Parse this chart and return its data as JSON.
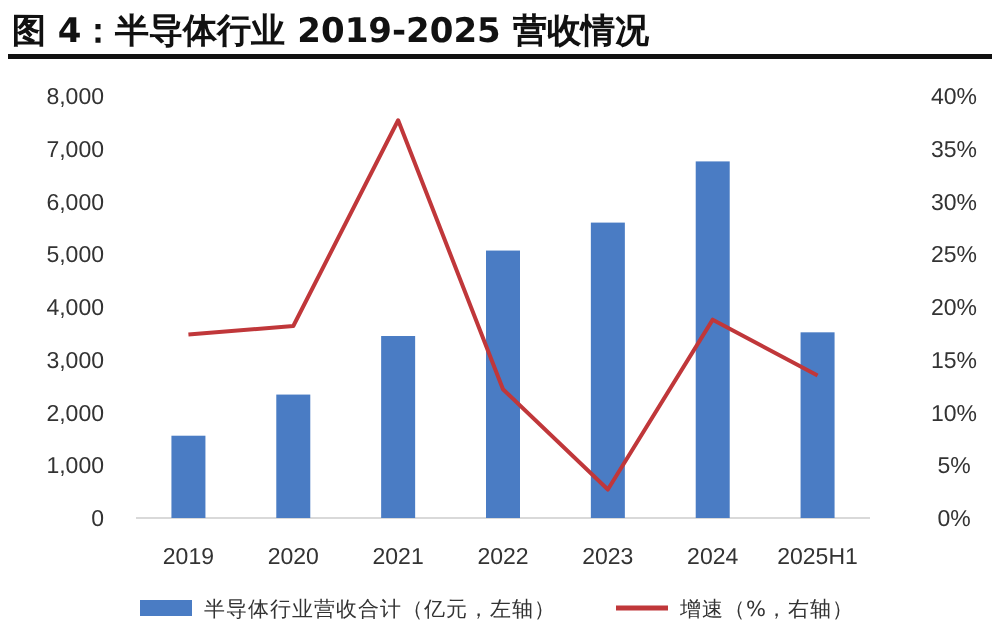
{
  "chart_data": {
    "type": "bar",
    "title": "图 4：半导体行业 2019-2025 营收情况",
    "categories": [
      "2019",
      "2020",
      "2021",
      "2022",
      "2023",
      "2024",
      "2025H1"
    ],
    "series": [
      {
        "name": "半导体行业营收合计（亿元，左轴）",
        "color": "#4a7cc4",
        "axis": "y",
        "values": [
          1560,
          2340,
          3450,
          5070,
          5600,
          6760,
          3520
        ]
      },
      {
        "name": "增速（%，右轴）",
        "color": "#c0373a",
        "type": "line",
        "axis": "y2",
        "values": [
          17.4,
          18.2,
          37.7,
          12.2,
          2.7,
          18.8,
          13.5
        ]
      }
    ],
    "ylim": [
      0,
      8000
    ],
    "yticks": [
      {
        "value": 0,
        "label": "0"
      },
      {
        "value": 1000,
        "label": "1,000"
      },
      {
        "value": 2000,
        "label": "2,000"
      },
      {
        "value": 3000,
        "label": "3,000"
      },
      {
        "value": 4000,
        "label": "4,000"
      },
      {
        "value": 5000,
        "label": "5,000"
      },
      {
        "value": 6000,
        "label": "6,000"
      },
      {
        "value": 7000,
        "label": "7,000"
      },
      {
        "value": 8000,
        "label": "8,000"
      }
    ],
    "y2lim": [
      0,
      40
    ],
    "y2ticks": [
      {
        "value": 0,
        "label": "0%"
      },
      {
        "value": 5,
        "label": "5%"
      },
      {
        "value": 10,
        "label": "10%"
      },
      {
        "value": 15,
        "label": "15%"
      },
      {
        "value": 20,
        "label": "20%"
      },
      {
        "value": 25,
        "label": "25%"
      },
      {
        "value": 30,
        "label": "30%"
      },
      {
        "value": 35,
        "label": "35%"
      },
      {
        "value": 40,
        "label": "40%"
      }
    ],
    "legend": "bottom"
  }
}
